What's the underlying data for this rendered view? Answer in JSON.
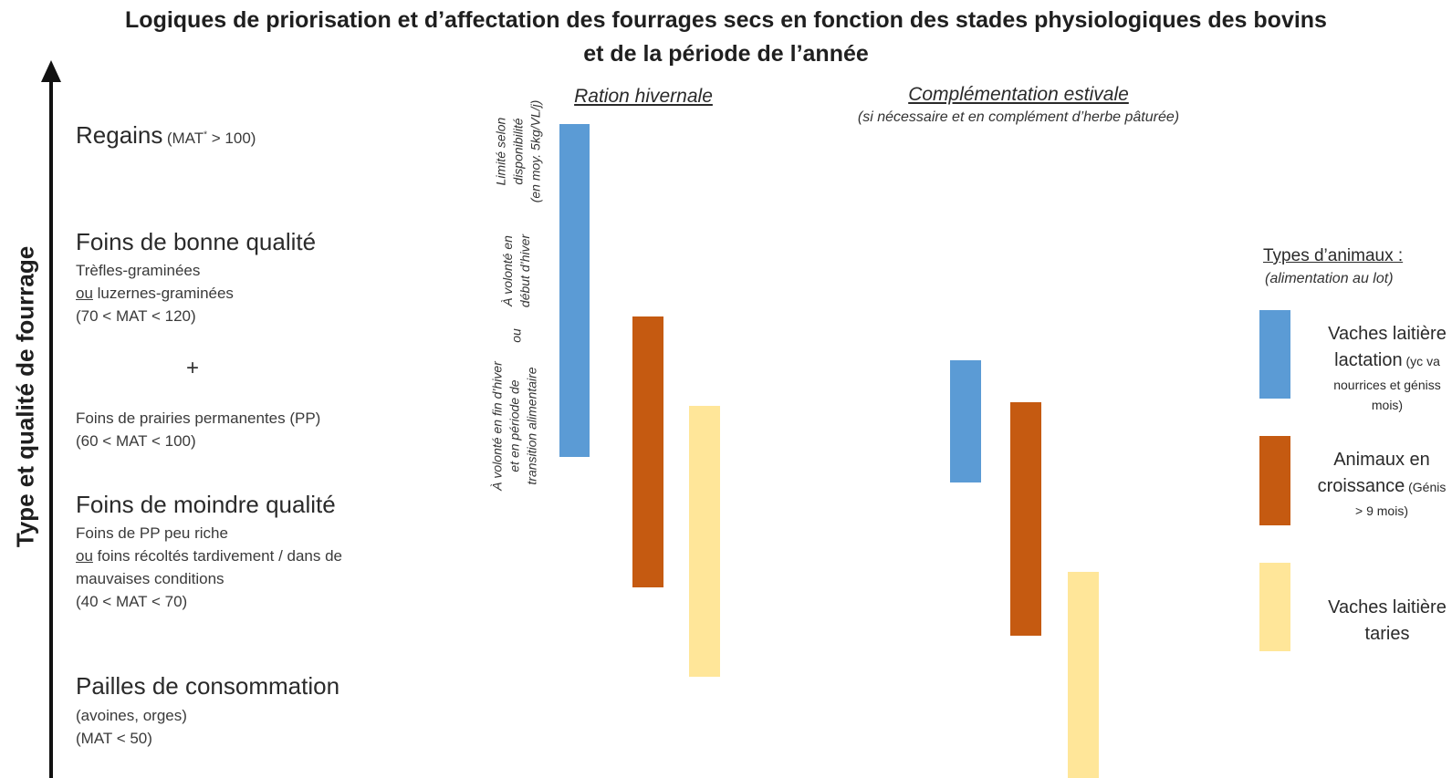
{
  "title": {
    "line1": "Logiques de priorisation et d’affectation des fourrages secs en fonction des stades physiologiques des bovins",
    "line2": "et de la période de l’année"
  },
  "axis": {
    "label": "Type et qualité de fourrage",
    "icon": "up-arrow-icon"
  },
  "categories": {
    "regains": {
      "name": "Regains",
      "note_pre": "(MAT",
      "note_sup": "*",
      "note_post": " > 100)"
    },
    "foins_bonne": {
      "name": "Foins de bonne qualité",
      "line1": "Trèfles-graminées",
      "line2_ou": "ou",
      "line2_rest": " luzernes-graminées",
      "line3": "(70 < MAT < 120)",
      "plus": "+",
      "line4": "Foins de prairies permanentes (PP)",
      "line5": "(60 < MAT < 100)"
    },
    "foins_moindre": {
      "name": "Foins de moindre qualité",
      "line1": "Foins de PP peu riche",
      "line2_ou": "ou",
      "line2_rest": " foins récoltés tardivement / dans de",
      "line3": "mauvaises conditions",
      "line4": "(40 < MAT < 70)"
    },
    "pailles": {
      "name": "Pailles de consommation",
      "line1": "(avoines, orges)",
      "line2": "(MAT < 50)"
    }
  },
  "sections": {
    "hivernale": {
      "title": "Ration hivernale"
    },
    "estivale": {
      "title": "Complémentation estivale",
      "subtitle": "(si nécessaire et en complément d’herbe pâturée)"
    }
  },
  "annotations": {
    "limite": {
      "l1": "Limité selon",
      "l2": "disponibilité",
      "l3": "(en moy. 5kg/VL/j)"
    },
    "volonte_debut": {
      "l1": "À volonté en",
      "l2": "début d’hiver"
    },
    "ou": "ou",
    "volonte_fin": {
      "l1": "À volonté en fin d’hiver",
      "l2": "et en période de",
      "l3": "transition alimentaire"
    }
  },
  "legend": {
    "title": "Types d’animaux :",
    "subtitle": "(alimentation au lot)",
    "items": [
      {
        "l1": "Vaches laitière",
        "l2": "lactation",
        "l2s": " (yc va",
        "l3": "nourrices et géniss",
        "l4": "mois)",
        "color": "#5b9bd5"
      },
      {
        "l1": "Animaux en",
        "l2": "croissance",
        "l2s": " (Génis",
        "l3": "> 9 mois)",
        "color": "#c55a11"
      },
      {
        "l1": "Vaches laitière",
        "l2": "taries",
        "color": "#ffe699"
      }
    ]
  },
  "colors": {
    "lactation": "#5b9bd5",
    "croissance": "#c55a11",
    "taries": "#ffe699"
  }
}
